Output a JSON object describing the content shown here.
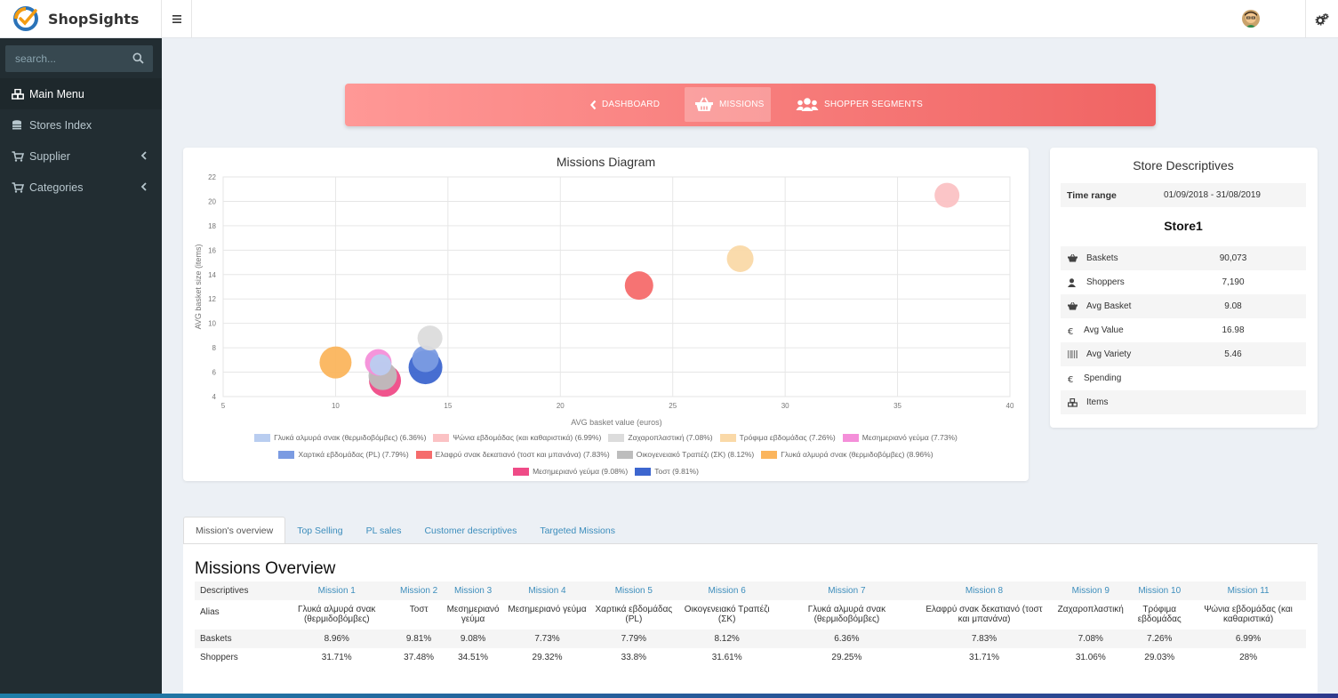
{
  "app": {
    "name": "ShopSights"
  },
  "header": {
    "menu_icon": "bars-icon",
    "avatar": "user-avatar",
    "settings_icon": "cogs-icon"
  },
  "sidebar": {
    "search_placeholder": "search...",
    "items": [
      {
        "label": "Main Menu",
        "icon": "cubes-icon"
      },
      {
        "label": "Stores Index",
        "icon": "database-icon"
      },
      {
        "label": "Supplier",
        "icon": "cart-icon"
      },
      {
        "label": "Categories",
        "icon": "cart-icon"
      }
    ]
  },
  "nav": {
    "tabs": [
      {
        "label": "DASHBOARD",
        "icon": "chevron-left-icon"
      },
      {
        "label": "MISSIONS",
        "icon": "basket-icon"
      },
      {
        "label": "SHOPPER SEGMENTS",
        "icon": "users-icon"
      }
    ],
    "active": "MISSIONS"
  },
  "chart_data": {
    "type": "bubble",
    "title": "Missions Diagram",
    "xlabel": "AVG basket value (euros)",
    "ylabel": "AVG basket size (items)",
    "xlim": [
      5,
      40
    ],
    "ylim": [
      4,
      22
    ],
    "xticks": [
      5,
      10,
      15,
      20,
      25,
      30,
      35,
      40
    ],
    "yticks": [
      4,
      6,
      8,
      10,
      12,
      14,
      16,
      18,
      20,
      22
    ],
    "grid": true,
    "legend": "bottom",
    "series": [
      {
        "name": "Γλυκά αλμυρά σνακ (θερμιδοβόμβες) (6.36%)",
        "x": 12.0,
        "y": 6.6,
        "r": 12,
        "color": "#b9cdf0"
      },
      {
        "name": "Ψώνια εβδομάδας (και καθαριστικά) (6.99%)",
        "x": 37.2,
        "y": 20.5,
        "r": 14,
        "color": "#fbc2c4"
      },
      {
        "name": "Ζαχαροπλαστική (7.08%)",
        "x": 14.2,
        "y": 8.8,
        "r": 14,
        "color": "#dcdcdc"
      },
      {
        "name": "Τρόφιμα εβδομάδας (7.26%)",
        "x": 28.0,
        "y": 15.3,
        "r": 15,
        "color": "#fad9a8"
      },
      {
        "name": "Μεσημεριανό γεύμα (7.73%)",
        "x": 11.9,
        "y": 6.8,
        "r": 15,
        "color": "#f48fd9"
      },
      {
        "name": "Χαρτικά εβδομάδας (PL) (7.79%)",
        "x": 14.0,
        "y": 7.1,
        "r": 15,
        "color": "#7b9be2"
      },
      {
        "name": "Ελαφρύ σνακ δεκατιανό (τοστ και μπανάνα) (7.83%)",
        "x": 23.5,
        "y": 13.1,
        "r": 16,
        "color": "#f56c6c"
      },
      {
        "name": "Οικογενειακό Τραπέζι (ΣΚ) (8.12%)",
        "x": 12.1,
        "y": 5.7,
        "r": 16,
        "color": "#bdbdbd"
      },
      {
        "name": "Γλυκά αλμυρά σνακ (θερμιδοβόμβες) (8.96%)",
        "x": 10.0,
        "y": 6.8,
        "r": 18,
        "color": "#fbb55d"
      },
      {
        "name": "Μεσημεριανό γεύμα (9.08%)",
        "x": 12.2,
        "y": 5.3,
        "r": 18,
        "color": "#ef4b87"
      },
      {
        "name": "Τοστ (9.81%)",
        "x": 14.0,
        "y": 6.4,
        "r": 19,
        "color": "#3d66cf"
      }
    ]
  },
  "store": {
    "title": "Store Descriptives",
    "time_range_label": "Time range",
    "time_range": "01/09/2018 - 31/08/2019",
    "name": "Store1",
    "rows": [
      {
        "label": "Baskets",
        "value": "90,073",
        "icon": "basket-icon"
      },
      {
        "label": "Shoppers",
        "value": "7,190",
        "icon": "user-icon"
      },
      {
        "label": "Avg Basket",
        "value": "9.08",
        "icon": "basket-icon"
      },
      {
        "label": "Avg Value",
        "value": "16.98",
        "icon": "euro-icon"
      },
      {
        "label": "Avg Variety",
        "value": "5.46",
        "icon": "barcode-icon"
      },
      {
        "label": "Spending",
        "value": "",
        "icon": "euro-icon"
      },
      {
        "label": "Items",
        "value": "",
        "icon": "cubes-icon"
      }
    ]
  },
  "tabs": [
    "Mission's overview",
    "Top Selling",
    "PL sales",
    "Customer descriptives",
    "Targeted Missions"
  ],
  "overview": {
    "title": "Missions Overview",
    "headers": [
      "Descriptives",
      "Mission 1",
      "Mission 2",
      "Mission 3",
      "Mission 4",
      "Mission 5",
      "Mission 6",
      "Mission 7",
      "Mission 8",
      "Mission 9",
      "Mission 10",
      "Mission 11"
    ],
    "rows": [
      [
        "Alias",
        "Γλυκά αλμυρά σνακ (θερμιδοβόμβες)",
        "Τοστ",
        "Μεσημεριανό γεύμα",
        "Μεσημεριανό γεύμα",
        "Χαρτικά εβδομάδας (PL)",
        "Οικογενειακό Τραπέζι (ΣΚ)",
        "Γλυκά αλμυρά σνακ (θερμιδοβόμβες)",
        "Ελαφρύ σνακ δεκατιανό (τοστ και μπανάνα)",
        "Ζαχαροπλαστική",
        "Τρόφιμα εβδομάδας",
        "Ψώνια εβδομάδας (και καθαριστικά)"
      ],
      [
        "Baskets",
        "8.96%",
        "9.81%",
        "9.08%",
        "7.73%",
        "7.79%",
        "8.12%",
        "6.36%",
        "7.83%",
        "7.08%",
        "7.26%",
        "6.99%"
      ],
      [
        "Shoppers",
        "31.71%",
        "37.48%",
        "34.51%",
        "29.32%",
        "33.8%",
        "31.61%",
        "29.25%",
        "31.71%",
        "31.06%",
        "29.03%",
        "28%"
      ]
    ]
  }
}
